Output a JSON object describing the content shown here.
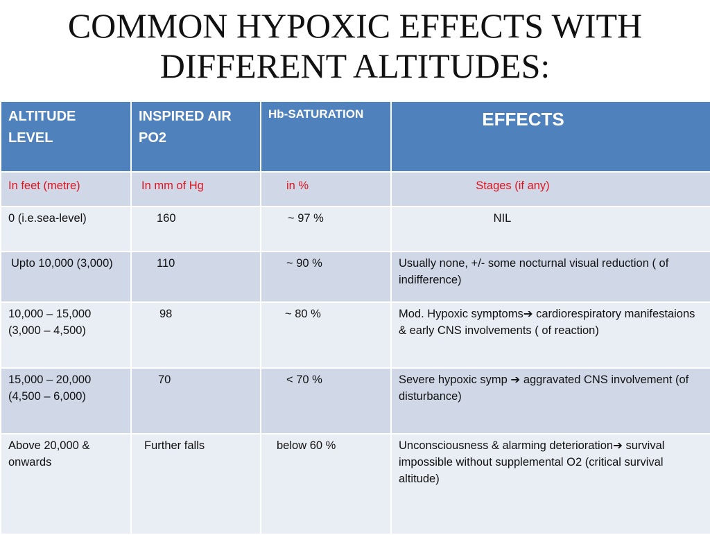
{
  "title": {
    "line1": "COMMON HYPOXIC EFFECTS WITH",
    "line2": "DIFFERENT ALTITUDES:"
  },
  "table": {
    "headers": {
      "altitude": "ALTITUDE LEVEL",
      "inspired": "INSPIRED AIR PO2",
      "hb": "Hb-SATURATION",
      "effects": "EFFECTS"
    },
    "units": {
      "altitude": "In feet (metre)",
      "inspired": "In mm of Hg",
      "hb": "in %",
      "effects": "Stages (if any)"
    },
    "rows": [
      {
        "altitude": "0 (i.e.sea-level)",
        "inspired": "160",
        "hb": "~ 97 %",
        "effects": "NIL"
      },
      {
        "altitude": "Upto 10,000 (3,000)",
        "inspired": "110",
        "hb": "~ 90 %",
        "effects": "Usually none, +/-  some nocturnal visual reduction ( of indifference)"
      },
      {
        "altitude": "10,000 – 15,000 (3,000 – 4,500)",
        "inspired": "98",
        "hb": "~ 80 %",
        "effects_a": "Mod. Hypoxic symptoms",
        "arrow": "➔",
        "effects_b": " cardiorespiratory manifestaions & early CNS involvements            ( of reaction)"
      },
      {
        "altitude": "15,000 – 20,000 (4,500 – 6,000)",
        "inspired": "70",
        "hb": "< 70 %",
        "effects_a": "Severe hypoxic symp ",
        "arrow": "➔",
        "effects_b": " aggravated CNS involvement (of disturbance)"
      },
      {
        "altitude": "Above 20,000 & onwards",
        "inspired": "Further falls",
        "hb": "below 60 %",
        "effects_a": "Unconsciousness & alarming deterioration",
        "arrow": "➔",
        "effects_b": " survival impossible without  supplemental O2         (critical survival altitude)"
      }
    ]
  }
}
